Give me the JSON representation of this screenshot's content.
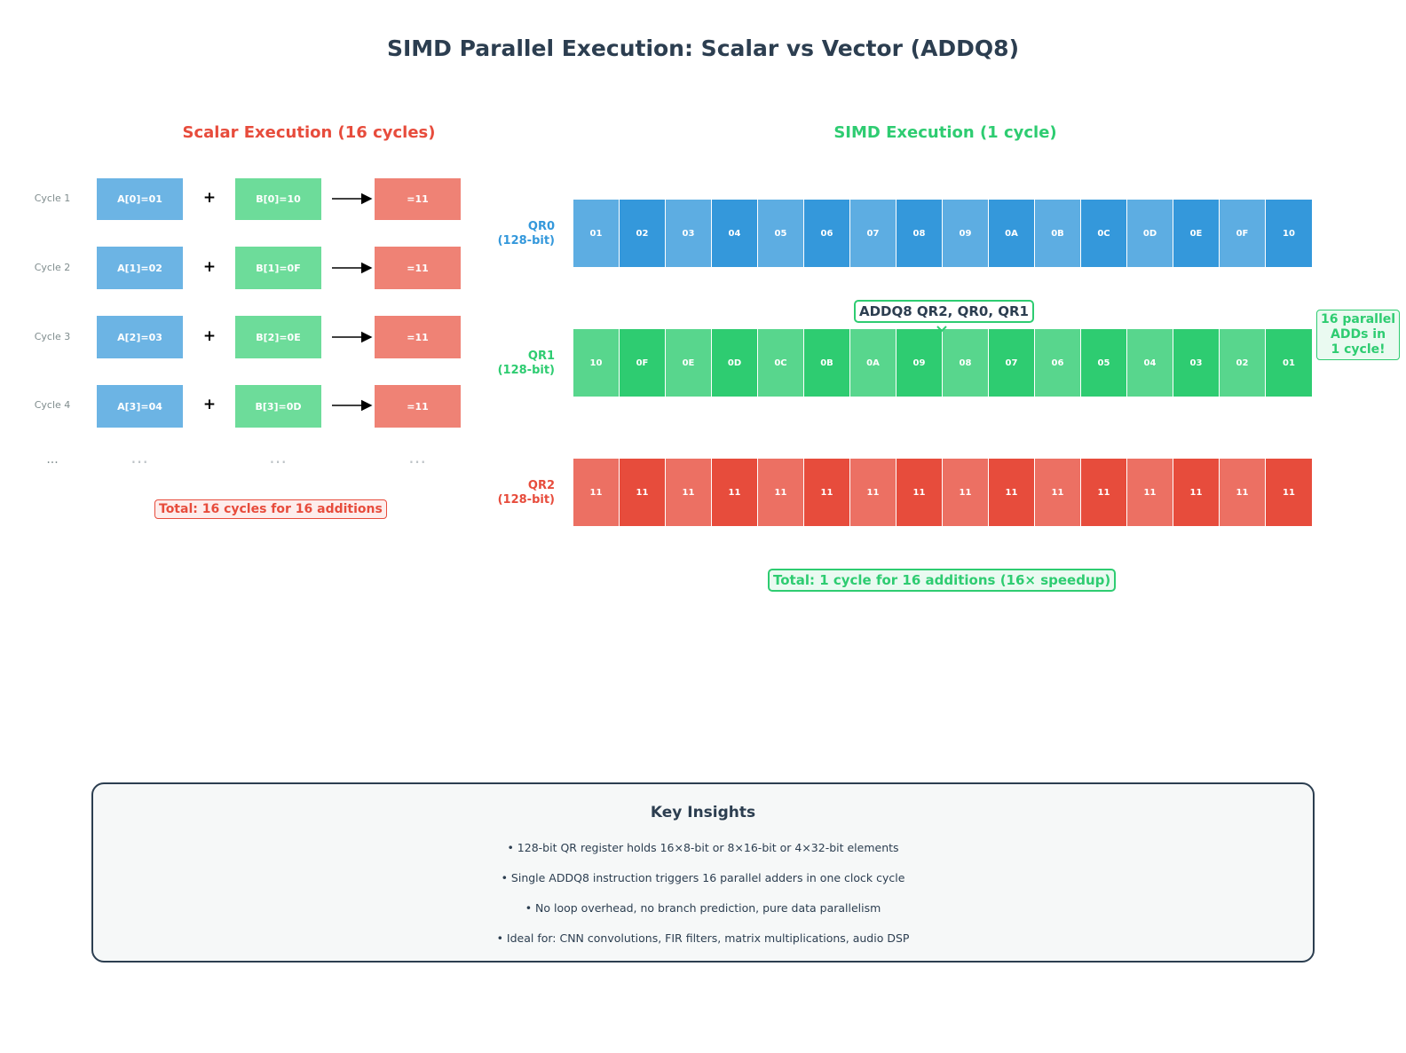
{
  "title": "SIMD Parallel Execution: Scalar vs Vector (ADDQ8)",
  "scalar": {
    "heading": "Scalar Execution (16 cycles)",
    "rows": [
      {
        "cycle": "Cycle 1",
        "a": "A[0]=01",
        "op": "+",
        "b": "B[0]=10",
        "r": "=11"
      },
      {
        "cycle": "Cycle 2",
        "a": "A[1]=02",
        "op": "+",
        "b": "B[1]=0F",
        "r": "=11"
      },
      {
        "cycle": "Cycle 3",
        "a": "A[2]=03",
        "op": "+",
        "b": "B[2]=0E",
        "r": "=11"
      },
      {
        "cycle": "Cycle 4",
        "a": "A[3]=04",
        "op": "+",
        "b": "B[3]=0D",
        "r": "=11"
      }
    ],
    "ellipsis_label": "...",
    "ellipsis_dots": "⋯",
    "total": "Total: 16 cycles for 16 additions"
  },
  "simd": {
    "heading": "SIMD Execution (1 cycle)",
    "registers": [
      {
        "name": "QR0",
        "width": "(128-bit)",
        "cells": [
          "01",
          "02",
          "03",
          "04",
          "05",
          "06",
          "07",
          "08",
          "09",
          "0A",
          "0B",
          "0C",
          "0D",
          "0E",
          "0F",
          "10"
        ]
      },
      {
        "name": "QR1",
        "width": "(128-bit)",
        "cells": [
          "10",
          "0F",
          "0E",
          "0D",
          "0C",
          "0B",
          "0A",
          "09",
          "08",
          "07",
          "06",
          "05",
          "04",
          "03",
          "02",
          "01"
        ]
      },
      {
        "name": "QR2",
        "width": "(128-bit)",
        "cells": [
          "11",
          "11",
          "11",
          "11",
          "11",
          "11",
          "11",
          "11",
          "11",
          "11",
          "11",
          "11",
          "11",
          "11",
          "11",
          "11"
        ]
      }
    ],
    "instruction": "ADDQ8 QR2, QR0, QR1",
    "parallel_note": [
      "16 parallel",
      "ADDs in",
      "1 cycle!"
    ],
    "total": "Total: 1 cycle for 16 additions (16× speedup)"
  },
  "insights": {
    "title": "Key Insights",
    "items": [
      "• 128-bit QR register holds 16×8-bit or 8×16-bit or 4×32-bit elements",
      "• Single ADDQ8 instruction triggers 16 parallel adders in one clock cycle",
      "• No loop overhead, no branch prediction, pure data parallelism",
      "• Ideal for: CNN convolutions, FIR filters, matrix multiplications, audio DSP"
    ]
  },
  "colors": {
    "blue": "#5dade2",
    "blue_dark": "#3498db",
    "green": "#58d68d",
    "green_dark": "#2ecc71",
    "red": "#ec7063",
    "red_dark": "#e74c3c",
    "scalar_blue": "#6cb4e4",
    "scalar_green": "#6ddc9a",
    "scalar_red": "#ef8275",
    "text": "#2c3e50"
  }
}
